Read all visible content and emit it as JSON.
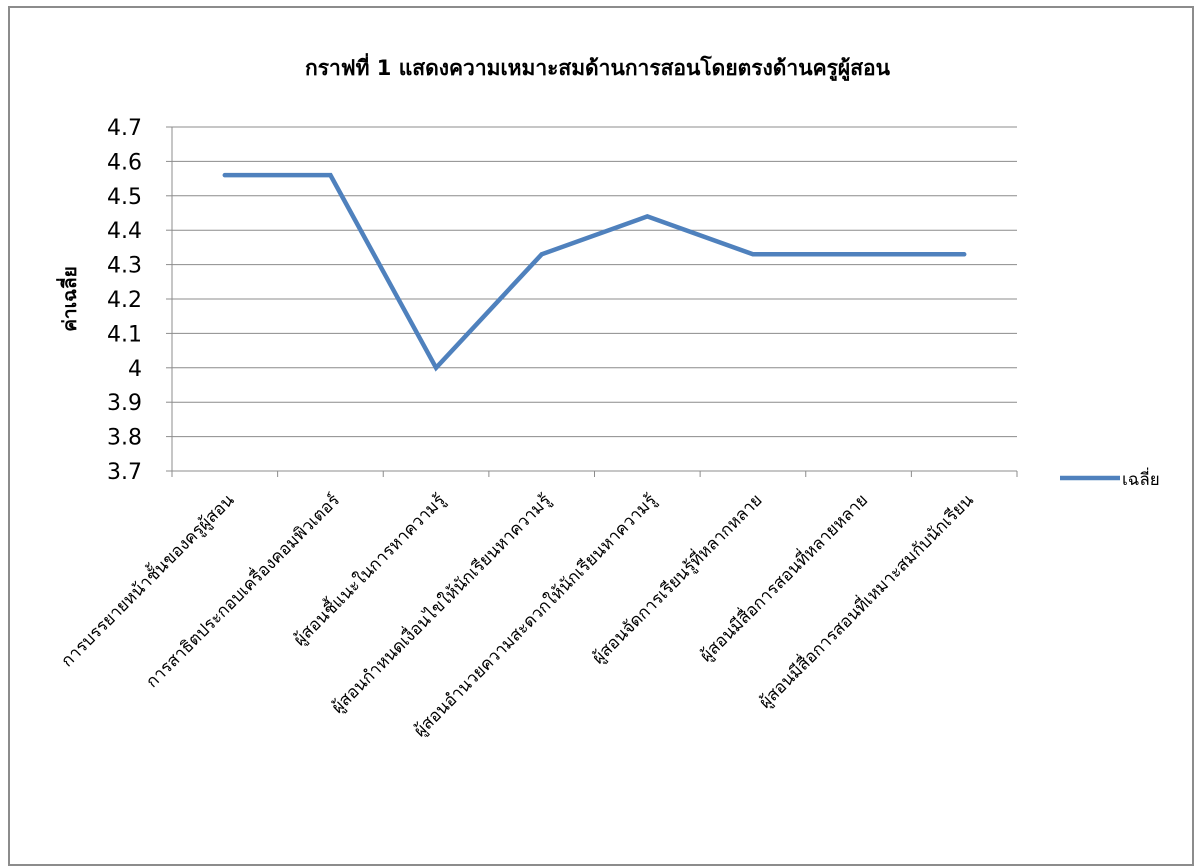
{
  "chart_data": {
    "type": "line",
    "title": "กราฟที่ 1 แสดงความเหมาะสมด้านการสอนโดยตรงด้านครูผู้สอน",
    "xlabel": "",
    "ylabel": "ค่าเฉลี่ย",
    "ylim": [
      3.7,
      4.7
    ],
    "yticks": [
      "4.7",
      "4.6",
      "4.5",
      "4.4",
      "4.3",
      "4.2",
      "4.1",
      "4",
      "3.9",
      "3.8",
      "3.7"
    ],
    "grid": true,
    "legend_position": "right",
    "categories": [
      "การบรรยายหน้าชั้นของครูผู้สอน",
      "การสาธิตประกอบเครื่องคอมพิวเตอร์",
      "ผู้สอนชี้แนะในการหาความรู้",
      "ผู้สอนกำหนดเงื่อนไขให้นักเรียนหาความรู้",
      "ผู้สอนอำนวยความสะดวกให้นักเรียนหาความรู้",
      "ผู้สอนจัดการเรียนรู้ที่หลากหลาย",
      "ผู้สอนมีสื่อการสอนที่หลายหลาย",
      "ผู้สอนมีสื่อการสอนที่เหมาะสมกับนักเรียน"
    ],
    "series": [
      {
        "name": "เฉลี่ย",
        "values": [
          4.56,
          4.56,
          4.0,
          4.33,
          4.44,
          4.33,
          4.33,
          4.33
        ],
        "color": "#4f81bd"
      }
    ]
  }
}
